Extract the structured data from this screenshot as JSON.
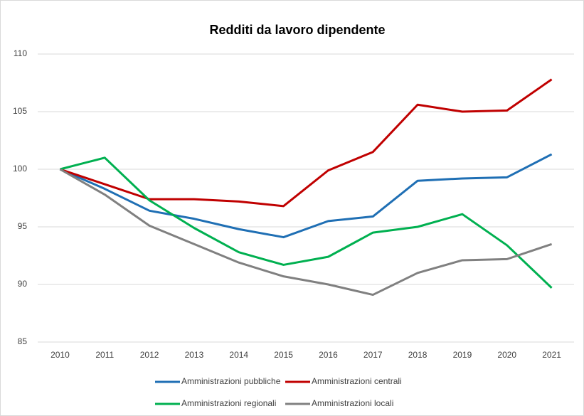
{
  "chart_data": {
    "type": "line",
    "title": "Redditi da lavoro dipendente",
    "categories": [
      "2010",
      "2011",
      "2012",
      "2013",
      "2014",
      "2015",
      "2016",
      "2017",
      "2018",
      "2019",
      "2020",
      "2021"
    ],
    "series": [
      {
        "name": "Amministrazioni pubbliche",
        "color": "#1f6fb4",
        "values": [
          100,
          98.3,
          96.4,
          95.7,
          94.8,
          94.1,
          95.5,
          95.9,
          99.0,
          99.2,
          99.3,
          101.3
        ]
      },
      {
        "name": "Amministrazioni centrali",
        "color": "#c00000",
        "values": [
          100,
          98.7,
          97.4,
          97.4,
          97.2,
          96.8,
          99.9,
          101.5,
          105.6,
          105.0,
          105.1,
          107.8
        ]
      },
      {
        "name": "Amministrazioni regionali",
        "color": "#00b050",
        "values": [
          100,
          101.0,
          97.3,
          94.9,
          92.8,
          91.7,
          92.4,
          94.5,
          95.0,
          96.1,
          93.4,
          89.7
        ]
      },
      {
        "name": "Amministrazioni locali",
        "color": "#808080",
        "values": [
          100,
          97.8,
          95.1,
          93.5,
          91.9,
          90.7,
          90.0,
          89.1,
          91.0,
          92.1,
          92.2,
          93.5
        ]
      }
    ],
    "ylim": [
      85,
      110
    ],
    "yticks": [
      85,
      90,
      95,
      100,
      105,
      110
    ],
    "grid": true,
    "legend": "bottom"
  }
}
